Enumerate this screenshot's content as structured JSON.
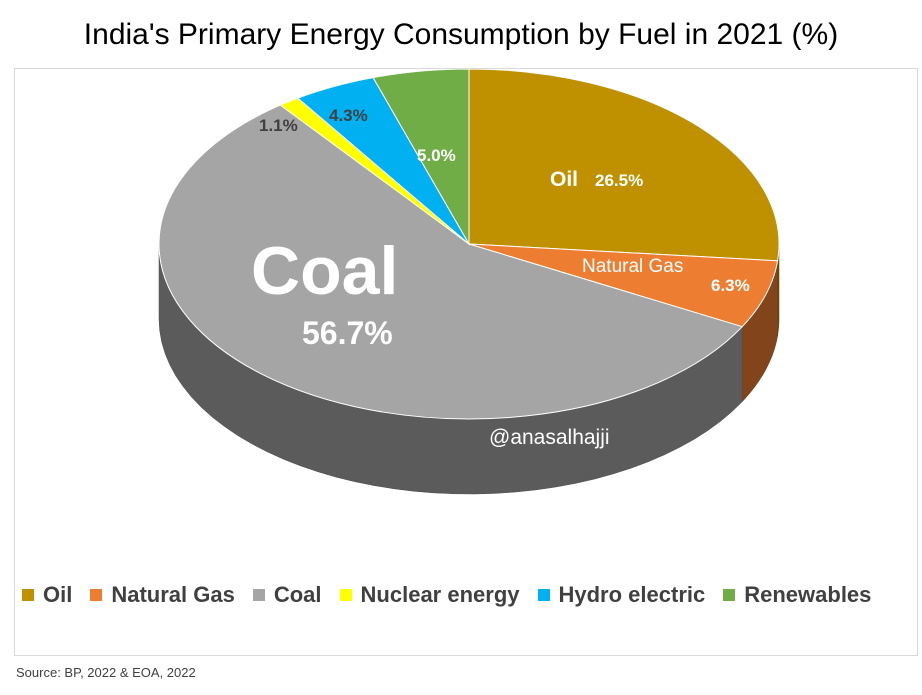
{
  "title": "India's Primary Energy Consumption by Fuel in 2021 (%)",
  "watermark": "@anasalhajji",
  "source": "Source: BP, 2022 & EOA, 2022",
  "chart_data": {
    "type": "pie",
    "title": "India's Primary Energy Consumption by Fuel in 2021 (%)",
    "unit": "%",
    "categories": [
      "Oil",
      "Natural Gas",
      "Coal",
      "Nuclear energy",
      "Hydro electric",
      "Renewables"
    ],
    "values": [
      26.5,
      6.3,
      56.7,
      1.1,
      4.3,
      5.0
    ],
    "value_labels": [
      "26.5%",
      "6.3%",
      "56.7%",
      "1.1%",
      "4.3%",
      "5.0%"
    ],
    "colors": [
      "#bf9000",
      "#ed7d31",
      "#a5a5a5",
      "#ffff00",
      "#00b0f0",
      "#70ad47"
    ],
    "inside_labels": {
      "Oil": "Oil",
      "Natural Gas": "Natural Gas",
      "Coal": "Coal"
    },
    "legend_position": "bottom",
    "style": "3d"
  }
}
